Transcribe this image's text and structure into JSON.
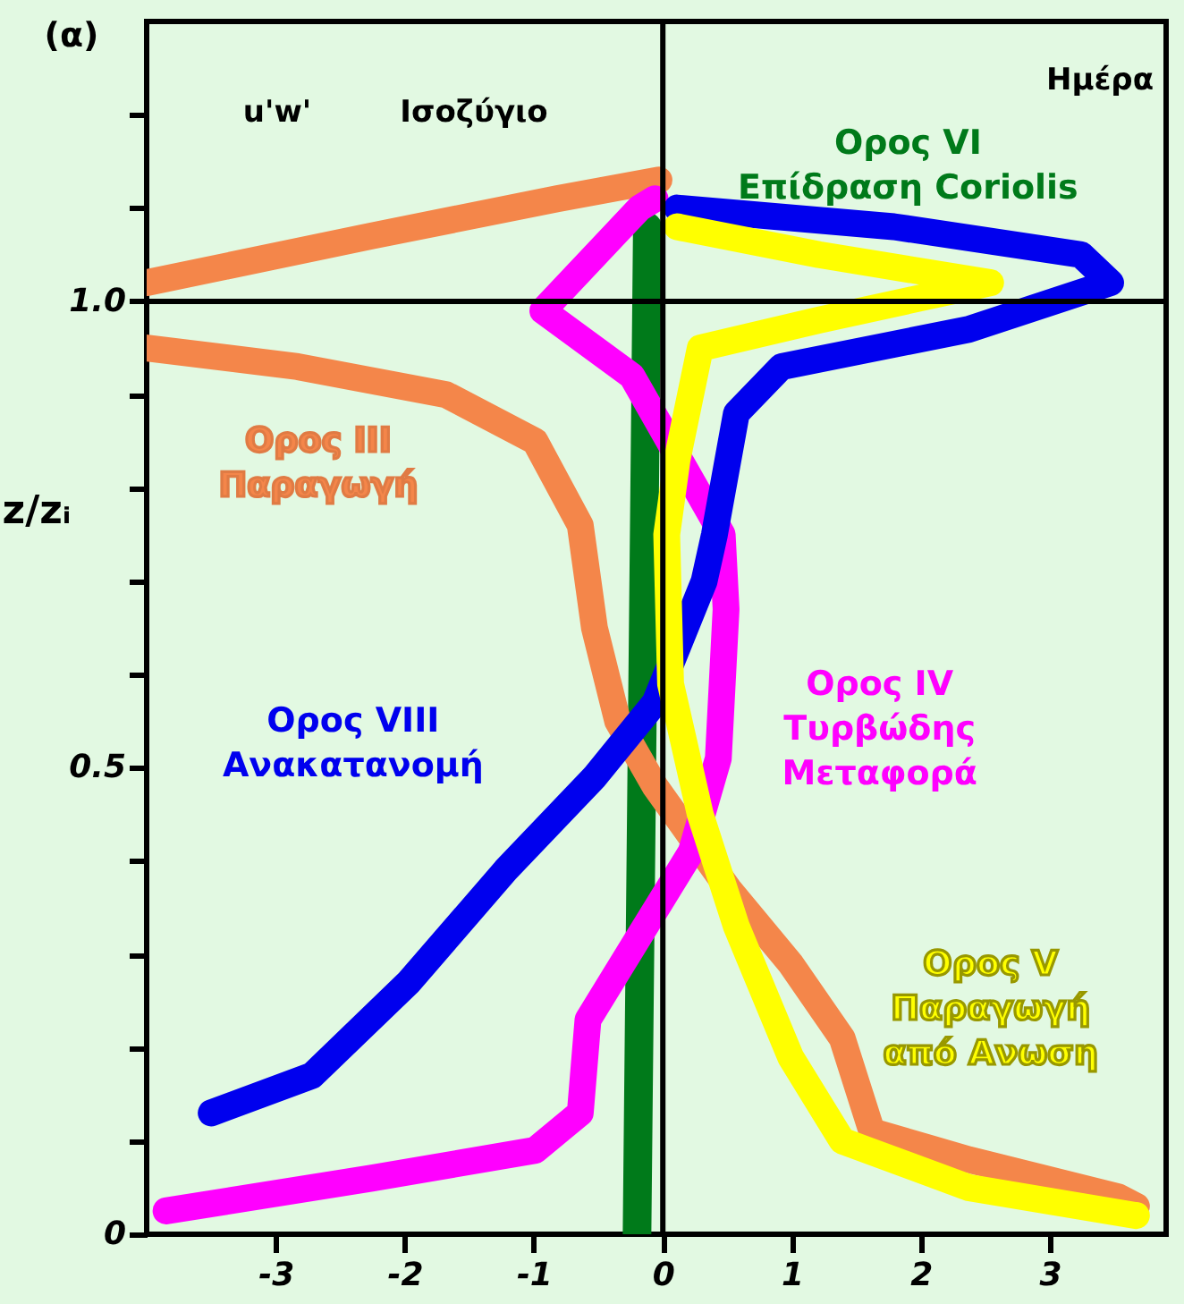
{
  "chart_data": {
    "type": "line",
    "ylabel": "z/zᵢ",
    "annotations": [
      "(α)",
      "u'w'",
      "Ισοζύγιο",
      "Ημέρα"
    ],
    "xlim": [
      -4,
      3.9
    ],
    "ylim": [
      0,
      1.3
    ],
    "xticks": [
      -3,
      -2,
      -1,
      0,
      1,
      2,
      3
    ],
    "yticks": [
      0,
      {
        "value": 0.1,
        "label": null
      },
      {
        "value": 0.2,
        "label": null
      },
      {
        "value": 0.3,
        "label": null
      },
      {
        "value": 0.4,
        "label": null
      },
      {
        "value": 0.5,
        "label": "0.5"
      },
      {
        "value": 0.6,
        "label": null
      },
      {
        "value": 0.7,
        "label": null
      },
      {
        "value": 0.8,
        "label": null
      },
      {
        "value": 0.9,
        "label": null
      },
      {
        "value": 1.0,
        "label": "1.0"
      },
      {
        "value": 1.1,
        "label": null
      },
      {
        "value": 1.2,
        "label": null
      }
    ],
    "grid": false,
    "legend": false,
    "line_style": "solid",
    "ref_lines": [
      {
        "axis": "x",
        "value": 0,
        "color": "#000000"
      },
      {
        "axis": "y",
        "value": 1.0,
        "color": "#000000"
      }
    ],
    "series": [
      {
        "name": "Ορος VI\nΕπίδραση Coriolis",
        "color": "#007a1a",
        "x": [
          -0.2,
          -0.12
        ],
        "values": [
          0,
          1.08
        ]
      },
      {
        "name": "Ορος III\nΠαραγωγή",
        "color": "#f4864a",
        "x": [
          -4.0,
          -2.83,
          -1.68,
          -0.99,
          -0.64,
          -0.53,
          -0.35,
          -0.06,
          0.51,
          0.99,
          1.39,
          1.62,
          2.37,
          3.53,
          3.67
        ],
        "values": [
          0.95,
          0.93,
          0.9,
          0.85,
          0.76,
          0.65,
          0.55,
          0.48,
          0.37,
          0.29,
          0.21,
          0.11,
          0.08,
          0.04,
          0.03
        ]
      },
      {
        "color": "#f4864a",
        "x": [
          -4.0,
          -2.26,
          -0.82,
          -0.03
        ],
        "values": [
          1.02,
          1.07,
          1.11,
          1.13
        ]
      },
      {
        "name": "Ορος IV\nΤυρβώδης\nΜεταφορά",
        "color": "#ff00ff",
        "x": [
          -3.85,
          -2.26,
          -0.99,
          -0.64,
          -0.58,
          -0.18,
          0.22,
          0.43,
          0.49,
          0.46,
          -0.24,
          -0.93,
          -0.18,
          -0.06
        ],
        "values": [
          0.025,
          0.06,
          0.09,
          0.13,
          0.23,
          0.32,
          0.41,
          0.51,
          0.67,
          0.75,
          0.92,
          0.99,
          1.1,
          1.11
        ]
      },
      {
        "name": "Ορος VIII\nΑνακατανομή",
        "color": "#0000ee",
        "x": [
          -3.5,
          -2.72,
          -1.97,
          -1.22,
          -0.53,
          -0.06,
          0.32,
          0.4,
          0.57,
          0.92,
          2.37,
          3.47,
          3.24,
          1.79,
          0.11
        ],
        "values": [
          0.13,
          0.17,
          0.27,
          0.39,
          0.49,
          0.57,
          0.7,
          0.75,
          0.88,
          0.93,
          0.97,
          1.02,
          1.05,
          1.08,
          1.1
        ]
      },
      {
        "name": "Ορος V\nΠαραγωγή\nαπό Ανωση",
        "color": "#ffff00",
        "x": [
          3.67,
          2.37,
          1.39,
          0.99,
          0.57,
          0.29,
          0.06,
          0.03,
          0.11,
          0.29,
          1.21,
          2.54,
          1.21,
          0.11
        ],
        "values": [
          0.02,
          0.05,
          0.1,
          0.19,
          0.33,
          0.45,
          0.59,
          0.75,
          0.83,
          0.95,
          0.98,
          1.02,
          1.05,
          1.08
        ]
      }
    ]
  }
}
